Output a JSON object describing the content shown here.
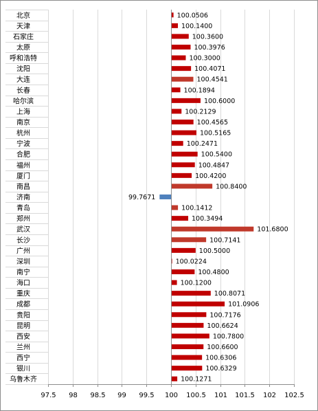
{
  "chart_data": {
    "type": "bar",
    "orientation": "horizontal",
    "title": "",
    "xlabel": "",
    "ylabel": "",
    "xlim": [
      97.5,
      102.5
    ],
    "baseline": 100,
    "grid": "vertical",
    "legend": "none",
    "x_ticks": [
      "97.5",
      "98",
      "98.5",
      "99",
      "99.5",
      "100",
      "100.5",
      "101",
      "101.5",
      "102",
      "102.5"
    ],
    "categories": [
      "北京",
      "天津",
      "石家庄",
      "太原",
      "呼和浩特",
      "沈阳",
      "大连",
      "长春",
      "哈尔滨",
      "上海",
      "南京",
      "杭州",
      "宁波",
      "合肥",
      "福州",
      "厦门",
      "南昌",
      "济南",
      "青岛",
      "郑州",
      "武汉",
      "长沙",
      "广州",
      "深圳",
      "南宁",
      "海口",
      "重庆",
      "成都",
      "贵阳",
      "昆明",
      "西安",
      "兰州",
      "西宁",
      "银川",
      "乌鲁木齐"
    ],
    "values": [
      100.0506,
      100.14,
      100.36,
      100.3976,
      100.3,
      100.4071,
      100.4541,
      100.1894,
      100.6,
      100.2129,
      100.4565,
      100.5165,
      100.2471,
      100.54,
      100.4847,
      100.42,
      100.84,
      99.7671,
      100.1412,
      100.3494,
      101.68,
      100.7141,
      100.5,
      100.0224,
      100.48,
      100.12,
      100.8071,
      101.0906,
      100.7176,
      100.6624,
      100.78,
      100.66,
      100.6306,
      100.6329,
      100.1271
    ],
    "value_labels": [
      "100.0506",
      "100.1400",
      "100.3600",
      "100.3976",
      "100.3000",
      "100.4071",
      "100.4541",
      "100.1894",
      "100.6000",
      "100.2129",
      "100.4565",
      "100.5165",
      "100.2471",
      "100.5400",
      "100.4847",
      "100.4200",
      "100.8400",
      "99.7671",
      "100.1412",
      "100.3494",
      "101.6800",
      "100.7141",
      "100.5000",
      "100.0224",
      "100.4800",
      "100.1200",
      "100.8071",
      "101.0906",
      "100.7176",
      "100.6624",
      "100.7800",
      "100.6600",
      "100.6306",
      "100.6329",
      "100.1271"
    ],
    "bar_colors": [
      "#c00000",
      "#c00000",
      "#c00000",
      "#c00000",
      "#c00000",
      "#c00000",
      "#c0392b",
      "#c00000",
      "#c00000",
      "#c00000",
      "#c00000",
      "#c00000",
      "#c00000",
      "#c00000",
      "#c00000",
      "#c00000",
      "#c0392b",
      "#4f81bd",
      "#c0392b",
      "#c00000",
      "#c0392b",
      "#c0392b",
      "#c00000",
      "#c00000",
      "#c00000",
      "#c00000",
      "#c00000",
      "#c00000",
      "#c00000",
      "#c00000",
      "#c00000",
      "#c00000",
      "#c00000",
      "#c00000",
      "#c00000"
    ],
    "colors": {
      "positive": "#c00000",
      "negative": "#4f81bd",
      "grid": "#d9d9d9",
      "axis": "#8c8c8c"
    }
  }
}
